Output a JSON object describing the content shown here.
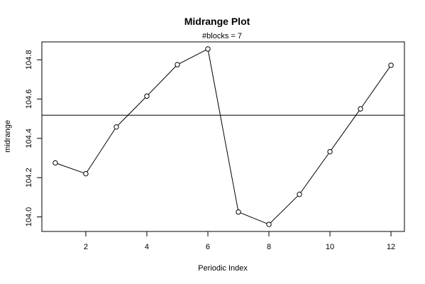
{
  "chart_data": {
    "type": "line",
    "title": "Midrange Plot",
    "subtitle": "#blocks =  7",
    "xlabel": "Periodic Index",
    "ylabel": "midrange",
    "x": [
      1,
      2,
      3,
      4,
      5,
      6,
      7,
      8,
      9,
      10,
      11,
      12
    ],
    "series": [
      {
        "values": [
          104.275,
          104.22,
          104.458,
          104.615,
          104.775,
          104.855,
          104.025,
          103.962,
          104.115,
          104.332,
          104.55,
          104.772
        ],
        "color": "#000000",
        "marker": "open-circle"
      }
    ],
    "reference_line": {
      "y": 104.518,
      "color": "#000000"
    },
    "xlim": [
      0.56,
      12.44
    ],
    "ylim": [
      103.926,
      104.891
    ],
    "x_ticks": [
      2,
      4,
      6,
      8,
      10,
      12
    ],
    "x_tick_labels": [
      "2",
      "4",
      "6",
      "8",
      "10",
      "12"
    ],
    "y_ticks": [
      104.0,
      104.2,
      104.4,
      104.6,
      104.8
    ],
    "y_tick_labels": [
      "104.0",
      "104.2",
      "104.4",
      "104.6",
      "104.8"
    ],
    "grid": false,
    "legend": "none"
  }
}
